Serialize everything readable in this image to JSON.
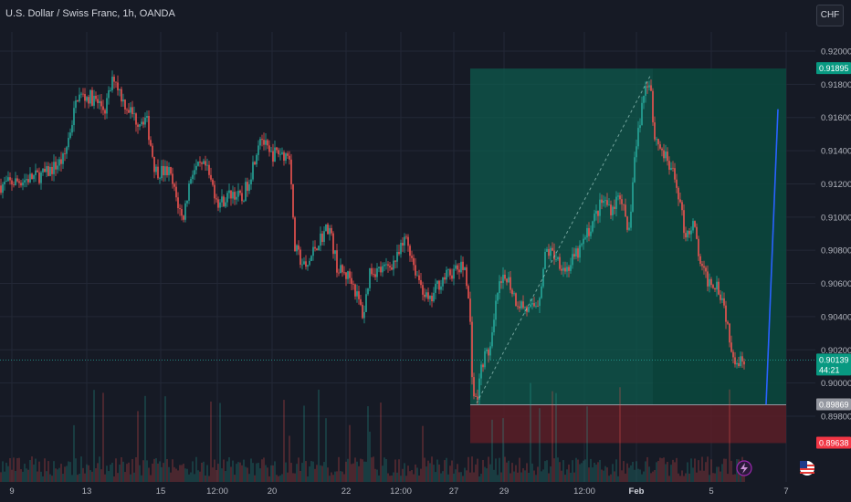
{
  "header": {
    "title": "U.S. Dollar / Swiss Franc, 1h, OANDA",
    "currency_button": "CHF"
  },
  "colors": {
    "background": "#161a25",
    "grid": "#232836",
    "up": "#26a69a",
    "down": "#ef5350",
    "profit_zone": "#0e5a4c",
    "loss_zone": "#5a1e27",
    "projection_line": "#2962ff",
    "price_label_current": "#089981",
    "price_label_entry": "#9598a1",
    "price_label_stop": "#f23645"
  },
  "chart_data": {
    "type": "candlestick",
    "symbol": "U.S. Dollar / Swiss Franc",
    "interval": "1h",
    "source": "OANDA",
    "y_ticks": [
      "0.92000",
      "0.91800",
      "0.91600",
      "0.91400",
      "0.91200",
      "0.91000",
      "0.90800",
      "0.90600",
      "0.90400",
      "0.90200",
      "0.90000",
      "0.89800"
    ],
    "x_ticks": [
      "9",
      "13",
      "15",
      "12:00",
      "20",
      "22",
      "12:00",
      "27",
      "29",
      "12:00",
      "Feb",
      "5",
      "7"
    ],
    "ylim": [
      0.8963,
      0.9206
    ],
    "price_path": [
      [
        0,
        0.9119
      ],
      [
        30,
        0.9123
      ],
      [
        50,
        0.9126
      ],
      [
        70,
        0.9135
      ],
      [
        85,
        0.9173
      ],
      [
        100,
        0.9172
      ],
      [
        115,
        0.9165
      ],
      [
        125,
        0.9185
      ],
      [
        135,
        0.917
      ],
      [
        150,
        0.9158
      ],
      [
        160,
        0.916
      ],
      [
        170,
        0.9128
      ],
      [
        185,
        0.9127
      ],
      [
        200,
        0.9098
      ],
      [
        210,
        0.9128
      ],
      [
        225,
        0.913
      ],
      [
        240,
        0.9108
      ],
      [
        255,
        0.9115
      ],
      [
        265,
        0.911
      ],
      [
        275,
        0.9127
      ],
      [
        285,
        0.915
      ],
      [
        295,
        0.9137
      ],
      [
        305,
        0.9139
      ],
      [
        318,
        0.9137
      ],
      [
        322,
        0.9082
      ],
      [
        335,
        0.9068
      ],
      [
        345,
        0.9082
      ],
      [
        360,
        0.9095
      ],
      [
        370,
        0.9068
      ],
      [
        385,
        0.9063
      ],
      [
        398,
        0.904
      ],
      [
        405,
        0.9068
      ],
      [
        420,
        0.9068
      ],
      [
        435,
        0.9075
      ],
      [
        445,
        0.9088
      ],
      [
        455,
        0.9068
      ],
      [
        470,
        0.9047
      ],
      [
        480,
        0.906
      ],
      [
        490,
        0.9065
      ],
      [
        500,
        0.9068
      ],
      [
        510,
        0.907
      ],
      [
        515,
        0.9035
      ],
      [
        518,
        0.8994
      ],
      [
        522,
        0.8988
      ],
      [
        528,
        0.9013
      ],
      [
        538,
        0.9022
      ],
      [
        545,
        0.9055
      ],
      [
        555,
        0.9065
      ],
      [
        565,
        0.905
      ],
      [
        580,
        0.9043
      ],
      [
        590,
        0.905
      ],
      [
        598,
        0.908
      ],
      [
        608,
        0.9077
      ],
      [
        620,
        0.9068
      ],
      [
        635,
        0.908
      ],
      [
        650,
        0.9098
      ],
      [
        660,
        0.911
      ],
      [
        670,
        0.9105
      ],
      [
        680,
        0.9115
      ],
      [
        688,
        0.9085
      ],
      [
        695,
        0.9135
      ],
      [
        705,
        0.9175
      ],
      [
        712,
        0.9185
      ],
      [
        716,
        0.915
      ],
      [
        725,
        0.914
      ],
      [
        735,
        0.9128
      ],
      [
        742,
        0.9118
      ],
      [
        750,
        0.909
      ],
      [
        760,
        0.9095
      ],
      [
        768,
        0.9068
      ],
      [
        775,
        0.9062
      ],
      [
        785,
        0.906
      ],
      [
        792,
        0.905
      ],
      [
        800,
        0.9025
      ],
      [
        806,
        0.9013
      ],
      [
        812,
        0.9014
      ],
      [
        816,
        0.9016
      ]
    ],
    "volume_overlay": true
  },
  "position_tool": {
    "entry": 0.89869,
    "target": 0.91895,
    "stop": 0.89638
  },
  "price_labels": {
    "target": "0.91895",
    "current_price": "0.90139",
    "countdown": "44:21",
    "entry": "0.89869",
    "stop": "0.89638"
  },
  "projection_line": {
    "start_price": 0.8987,
    "end_price": 0.9165
  },
  "icons": {
    "flash": "flash-icon",
    "flag": "us-flag-icon"
  }
}
